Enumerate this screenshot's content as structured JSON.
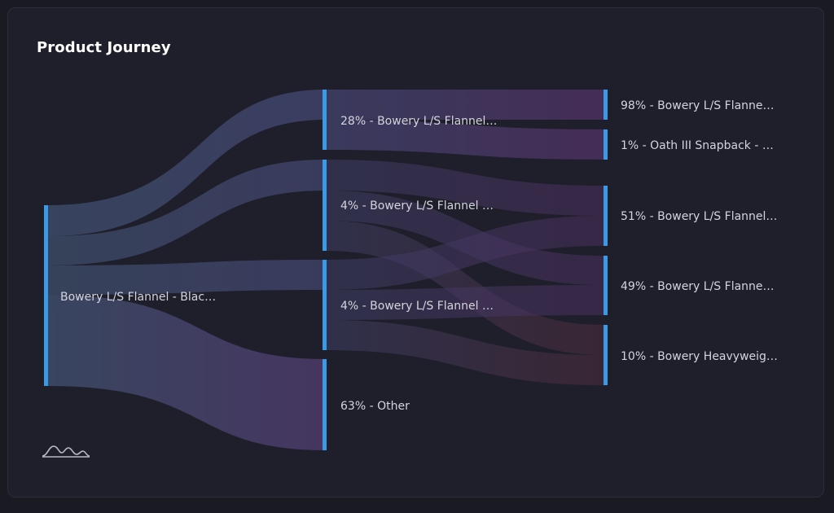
{
  "header": {
    "title": "Product Journey"
  },
  "colors": {
    "node_bar": "#3b9ae8",
    "link_start": "#3b4a66",
    "link_mid": "#4a3c6e",
    "link_end_upper": "#4b2f5e",
    "link_end_lower": "#4e2c3a"
  },
  "logo_icon": "mountain-logo-icon",
  "chart_data": {
    "type": "sankey",
    "title": "Product Journey",
    "nodes": [
      {
        "id": "root",
        "label": "Bowery L/S Flannel - Blac…",
        "column": 0
      },
      {
        "id": "b1",
        "label": "28% - Bowery L/S Flannel…",
        "column": 1
      },
      {
        "id": "b2",
        "label": "4% - Bowery L/S Flannel …",
        "column": 1
      },
      {
        "id": "b3",
        "label": "4% - Bowery L/S Flannel …",
        "column": 1
      },
      {
        "id": "b4",
        "label": "63% - Other",
        "column": 1
      },
      {
        "id": "c1",
        "label": "98% - Bowery L/S Flanne…",
        "column": 2
      },
      {
        "id": "c2",
        "label": "1% - Oath III Snapback - …",
        "column": 2
      },
      {
        "id": "c3",
        "label": "51% - Bowery L/S Flannel…",
        "column": 2
      },
      {
        "id": "c4",
        "label": "49% - Bowery L/S Flanne…",
        "column": 2
      },
      {
        "id": "c5",
        "label": "10% - Bowery Heavyweig…",
        "column": 2
      }
    ],
    "links": [
      {
        "source": "root",
        "target": "b1",
        "value": 28
      },
      {
        "source": "root",
        "target": "b2",
        "value": 4
      },
      {
        "source": "root",
        "target": "b3",
        "value": 4
      },
      {
        "source": "root",
        "target": "b4",
        "value": 63
      },
      {
        "source": "b1",
        "target": "c1",
        "value": 98
      },
      {
        "source": "b1",
        "target": "c2",
        "value": 1
      },
      {
        "source": "b2",
        "target": "c3",
        "value": 51
      },
      {
        "source": "b2",
        "target": "c4",
        "value": 49
      },
      {
        "source": "b2",
        "target": "c5",
        "value": 10
      },
      {
        "source": "b3",
        "target": "c3",
        "value": 51
      },
      {
        "source": "b3",
        "target": "c4",
        "value": 49
      },
      {
        "source": "b3",
        "target": "c5",
        "value": 10
      }
    ]
  }
}
